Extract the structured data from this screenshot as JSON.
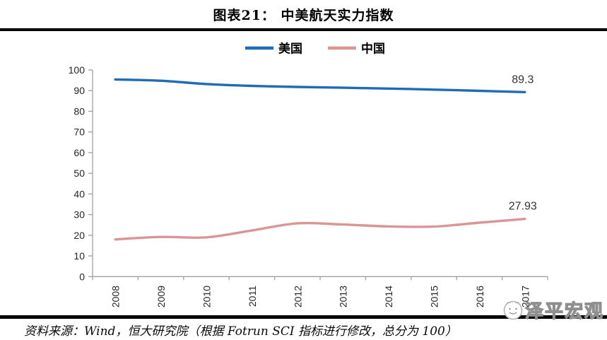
{
  "page": {
    "title": "图表21：  中美航天实力指数",
    "source_note": "资料来源：Wind，恒大研究院（根据 Fotrun SCI 指标进行修改，总分为 100）",
    "watermark": "泽平宏观"
  },
  "icons": {
    "watermark_logo": "mascot-face-icon"
  },
  "colors": {
    "us_line": "#1f6cb5",
    "cn_line": "#d99694",
    "axis": "#a0a0a0",
    "tick_label": "#262626",
    "data_label": "#333333",
    "divider": "#000000"
  },
  "chart_data": {
    "type": "line",
    "title": "中美航天实力指数",
    "title_prefix": "图表21：",
    "categories": [
      "2008",
      "2009",
      "2010",
      "2011",
      "2012",
      "2013",
      "2014",
      "2015",
      "2016",
      "2017"
    ],
    "series": [
      {
        "name": "美国",
        "color": "#1f6cb5",
        "values": [
          95.4,
          94.8,
          93.2,
          92.3,
          91.8,
          91.4,
          91.0,
          90.5,
          89.9,
          89.3
        ],
        "end_label": "89.3"
      },
      {
        "name": "中国",
        "color": "#d99694",
        "values": [
          18.0,
          19.2,
          19.0,
          22.3,
          25.8,
          25.2,
          24.3,
          24.2,
          26.1,
          27.93
        ],
        "end_label": "27.93"
      }
    ],
    "xlabel": "",
    "ylabel": "",
    "ylim": [
      0,
      100
    ],
    "yticks": [
      0,
      10,
      20,
      30,
      40,
      50,
      60,
      70,
      80,
      90,
      100
    ],
    "x_tick_style": "between-categories, labels rotated 90",
    "legend_position": "top",
    "grid": false,
    "smoothed_lines": true
  }
}
